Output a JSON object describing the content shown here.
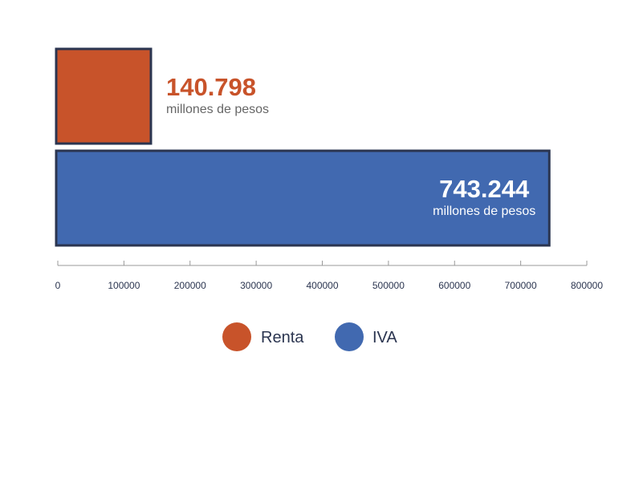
{
  "chart_data": {
    "type": "bar",
    "orientation": "horizontal",
    "categories": [
      "Renta",
      "IVA"
    ],
    "values": [
      140798,
      743244
    ],
    "value_labels": [
      "140.798",
      "743.244"
    ],
    "unit_label": "millones de pesos",
    "xlim": [
      0,
      800000
    ],
    "xticks": [
      0,
      100000,
      200000,
      300000,
      400000,
      500000,
      600000,
      700000,
      800000
    ],
    "xtick_labels": [
      "0",
      "100000",
      "200000",
      "300000",
      "400000",
      "500000",
      "600000",
      "700000",
      "800000"
    ],
    "grid": false,
    "legend_position": "bottom-center",
    "colors": {
      "Renta": "#c8532a",
      "IVA": "#4169b0"
    },
    "bar_border_color": "#2b3550",
    "axis_color": "#999999"
  }
}
